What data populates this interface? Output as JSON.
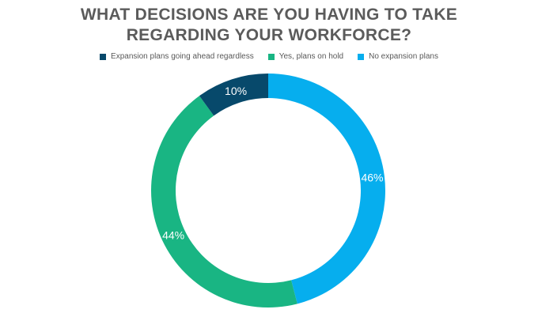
{
  "chart_data": {
    "type": "pie",
    "title": "WHAT DECISIONS ARE YOU HAVING TO TAKE REGARDING YOUR WORKFORCE?",
    "categories": [
      "Expansion plans going ahead regardless",
      "Yes, plans on hold",
      "No expansion plans"
    ],
    "values": [
      10,
      44,
      46
    ],
    "labels": [
      "10%",
      "44%",
      "46%"
    ],
    "colors": [
      "#07496b",
      "#19b583",
      "#06aeee"
    ],
    "donut": true,
    "legend_position": "top"
  }
}
